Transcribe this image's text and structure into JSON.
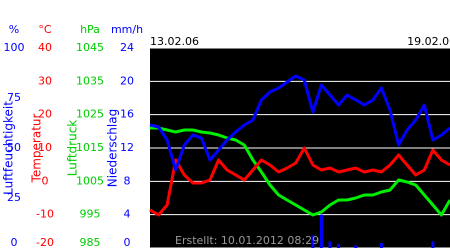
{
  "chart_data": {
    "type": "line",
    "x": [
      0,
      0.2,
      0.4,
      0.6,
      0.8,
      1.0,
      1.2,
      1.4,
      1.6,
      1.8,
      2.0,
      2.2,
      2.4,
      2.6,
      2.8,
      3.0,
      3.2,
      3.4,
      3.6,
      3.8,
      4.0,
      4.2,
      4.4,
      4.6,
      4.8,
      5.0,
      5.2,
      5.4,
      5.6,
      5.8,
      6.0,
      6.2,
      6.4,
      6.6,
      6.8,
      7.0
    ],
    "xlim": [
      0,
      7
    ],
    "xticks": [
      {
        "value": 0,
        "label": "13.02.06"
      },
      {
        "value": 6,
        "label": "19.02.06"
      }
    ],
    "grid": true,
    "background": "#000000",
    "axes": [
      {
        "label": "Luftfeuchtigkeit",
        "unit": "%",
        "color": "#0000ff",
        "ylim": [
          0,
          100
        ],
        "yticks": [
          0,
          25,
          50,
          75,
          100
        ]
      },
      {
        "label": "Temperatur",
        "unit": "°C",
        "color": "#ff0000",
        "ylim": [
          -20,
          40
        ],
        "yticks": [
          -20,
          -10,
          0,
          10,
          20,
          30,
          40
        ]
      },
      {
        "label": "Luftdruck",
        "unit": "hPa",
        "color": "#00cc00",
        "ylim": [
          985,
          1045
        ],
        "yticks": [
          985,
          995,
          1005,
          1015,
          1025,
          1035,
          1045
        ]
      },
      {
        "label": "Niederschlag",
        "unit": "mm/h",
        "color": "#0000ff",
        "ylim": [
          0,
          24
        ],
        "yticks": [
          0,
          4,
          8,
          12,
          16,
          20,
          24
        ]
      }
    ],
    "series": [
      {
        "type": "bar",
        "axis": 3,
        "color": "#0000ff",
        "values": [
          0,
          0,
          0,
          0,
          0,
          0,
          0,
          0,
          0,
          0,
          0,
          0,
          0,
          0,
          0,
          0,
          0,
          0,
          0,
          1.5,
          4,
          0.8,
          0.5,
          0,
          0.3,
          0,
          0,
          0.6,
          0,
          0,
          0,
          0,
          0,
          0.8,
          0,
          0
        ]
      },
      {
        "type": "line",
        "axis": 2,
        "color": "#00ee00",
        "values": [
          1021,
          1021,
          1020.4,
          1019.8,
          1020.4,
          1020.4,
          1019.8,
          1019.5,
          1018.9,
          1018,
          1017.4,
          1015.9,
          1011.4,
          1007.8,
          1003.9,
          1000.9,
          999.4,
          997.9,
          996.4,
          994.9,
          995.8,
          997.9,
          999.4,
          999.4,
          1000,
          1000.9,
          1000.9,
          1001.8,
          1002.4,
          1005.4,
          1004.8,
          1003.9,
          1000.9,
          997.9,
          994.9,
          999.4
        ]
      },
      {
        "type": "line",
        "axis": 1,
        "color": "#ff0000",
        "values": [
          -8.6,
          -10.1,
          -7.1,
          6.4,
          1.9,
          -0.5,
          -0.5,
          0.4,
          6.4,
          3.4,
          1.9,
          0.4,
          3.4,
          6.4,
          4.9,
          2.8,
          4,
          5.5,
          10,
          4.9,
          3.4,
          4,
          2.8,
          3.4,
          4,
          2.8,
          3.4,
          2.8,
          4.9,
          7.9,
          4.9,
          1.9,
          3.4,
          9.4,
          6.4,
          4.9
        ]
      },
      {
        "type": "line",
        "axis": 0,
        "color": "#0000ff",
        "values": [
          61.5,
          60.5,
          54,
          39,
          51.5,
          56.5,
          55,
          44,
          49,
          54,
          58,
          61.5,
          64,
          74,
          78,
          80,
          83,
          86,
          84,
          68,
          81.5,
          76.5,
          71.5,
          76.5,
          74,
          71.5,
          74,
          80,
          69,
          51.5,
          59,
          64,
          71.5,
          54,
          56.5,
          60
        ]
      }
    ],
    "note": "Erstellt: 10.01.2012 08:29"
  }
}
